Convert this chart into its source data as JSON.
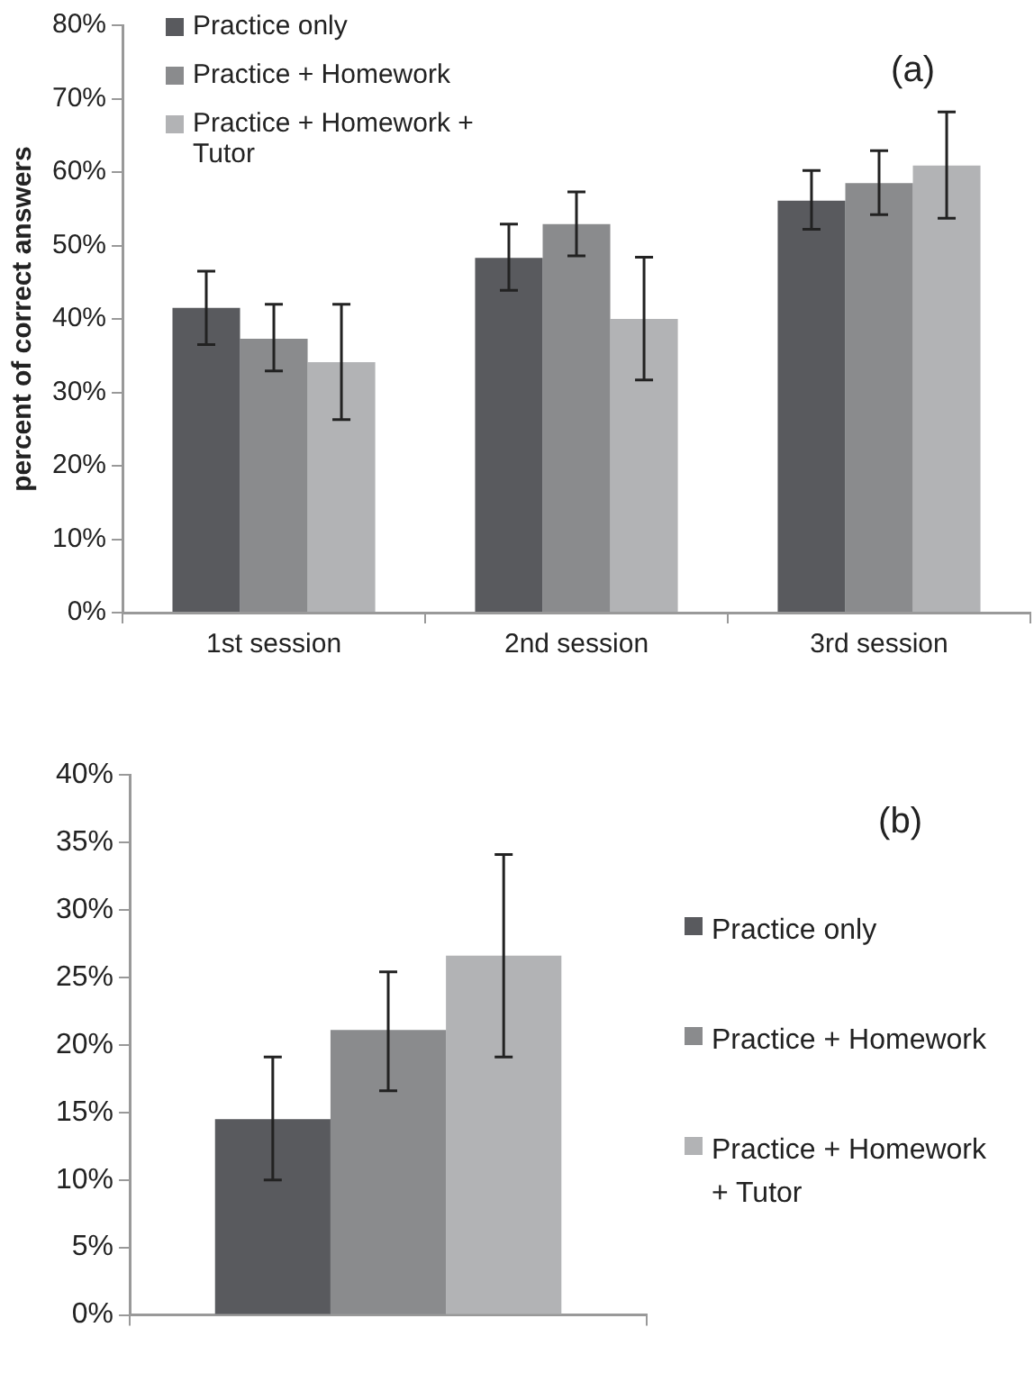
{
  "chart_data": [
    {
      "type": "bar",
      "ylabel": "percent of correct answers",
      "categories": [
        "1st session",
        "2nd session",
        "3rd session"
      ],
      "series": [
        {
          "name": "Practice only",
          "color": "#595a5e",
          "values": [
            41.5,
            48.3,
            56.1
          ],
          "errors": [
            [
              36.5,
              46.5
            ],
            [
              43.9,
              52.9
            ],
            [
              52.2,
              60.2
            ]
          ]
        },
        {
          "name": "Practice + Homework",
          "color": "#8a8b8d",
          "values": [
            37.3,
            52.9,
            58.5
          ],
          "errors": [
            [
              32.9,
              42.0
            ],
            [
              48.6,
              57.3
            ],
            [
              54.2,
              62.9
            ]
          ]
        },
        {
          "name": "Practice + Homework + Tutor",
          "color": "#b2b3b5",
          "values": [
            34.1,
            40.0,
            60.9
          ],
          "errors": [
            [
              26.3,
              42.0
            ],
            [
              31.7,
              48.4
            ],
            [
              53.7,
              68.2
            ]
          ]
        }
      ],
      "ylim": [
        0,
        80
      ],
      "yticks": [
        {
          "value": 0,
          "label": "0%"
        },
        {
          "value": 10,
          "label": "10%"
        },
        {
          "value": 20,
          "label": "20%"
        },
        {
          "value": 30,
          "label": "30%"
        },
        {
          "value": 40,
          "label": "40%"
        },
        {
          "value": 50,
          "label": "50%"
        },
        {
          "value": 60,
          "label": "60%"
        },
        {
          "value": 70,
          "label": "70%"
        },
        {
          "value": 80,
          "label": "80%"
        }
      ],
      "grid": false,
      "legend": "top left",
      "annotations": [
        "(a)"
      ]
    },
    {
      "type": "bar",
      "categories": [
        null
      ],
      "series": [
        {
          "name": "Practice only",
          "color": "#595a5e",
          "values": [
            14.5
          ],
          "errors": [
            [
              10.0,
              19.1
            ]
          ]
        },
        {
          "name": "Practice + Homework",
          "color": "#8a8b8d",
          "values": [
            21.1
          ],
          "errors": [
            [
              16.6,
              25.4
            ]
          ]
        },
        {
          "name": "Practice + Homework + Tutor",
          "color": "#b2b3b5",
          "values": [
            26.6
          ],
          "errors": [
            [
              19.1,
              34.1
            ]
          ]
        }
      ],
      "ylim": [
        0,
        40
      ],
      "yticks": [
        {
          "value": 0,
          "label": "0%"
        },
        {
          "value": 5,
          "label": "5%"
        },
        {
          "value": 10,
          "label": "10%"
        },
        {
          "value": 15,
          "label": "15%"
        },
        {
          "value": 20,
          "label": "20%"
        },
        {
          "value": 25,
          "label": "25%"
        },
        {
          "value": 30,
          "label": "30%"
        },
        {
          "value": 35,
          "label": "35%"
        },
        {
          "value": 40,
          "label": "40%"
        }
      ],
      "grid": false,
      "legend": "right",
      "annotations": [
        "(b)"
      ]
    }
  ]
}
